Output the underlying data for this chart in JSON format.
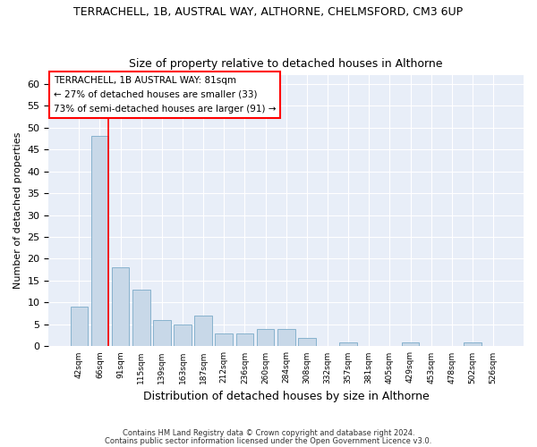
{
  "title1": "TERRACHELL, 1B, AUSTRAL WAY, ALTHORNE, CHELMSFORD, CM3 6UP",
  "title2": "Size of property relative to detached houses in Althorne",
  "xlabel": "Distribution of detached houses by size in Althorne",
  "ylabel": "Number of detached properties",
  "categories": [
    "42sqm",
    "66sqm",
    "91sqm",
    "115sqm",
    "139sqm",
    "163sqm",
    "187sqm",
    "212sqm",
    "236sqm",
    "260sqm",
    "284sqm",
    "308sqm",
    "332sqm",
    "357sqm",
    "381sqm",
    "405sqm",
    "429sqm",
    "453sqm",
    "478sqm",
    "502sqm",
    "526sqm"
  ],
  "values": [
    9,
    48,
    18,
    13,
    6,
    5,
    7,
    3,
    3,
    4,
    4,
    2,
    0,
    1,
    0,
    0,
    1,
    0,
    0,
    1,
    0
  ],
  "bar_color": "#c8d8e8",
  "bar_edgecolor": "#7aaac8",
  "background_color": "#e8eef8",
  "grid_color": "#ffffff",
  "redline_x": 1.425,
  "ylim": [
    0,
    62
  ],
  "yticks": [
    0,
    5,
    10,
    15,
    20,
    25,
    30,
    35,
    40,
    45,
    50,
    55,
    60
  ],
  "annotation_box_text": "TERRACHELL, 1B AUSTRAL WAY: 81sqm\n← 27% of detached houses are smaller (33)\n73% of semi-detached houses are larger (91) →",
  "footer1": "Contains HM Land Registry data © Crown copyright and database right 2024.",
  "footer2": "Contains public sector information licensed under the Open Government Licence v3.0."
}
